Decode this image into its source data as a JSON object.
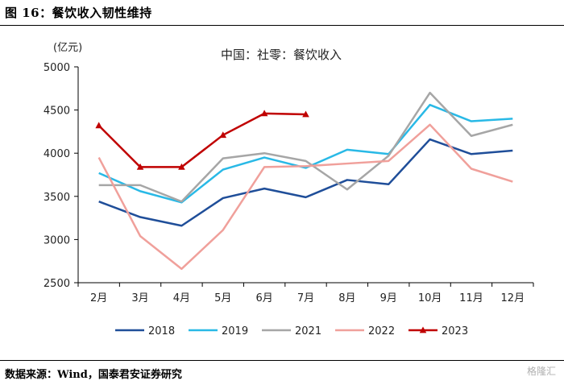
{
  "figure_title": "图 16：餐饮收入韧性维持",
  "source_text": "数据来源：Wind，国泰君安证券研究",
  "watermark": "格隆汇",
  "chart_data": {
    "type": "line",
    "title": "中国：社零：餐饮收入",
    "ylabel": "(亿元)",
    "xlabel": "",
    "ylim": [
      2500,
      5000
    ],
    "yticks": [
      2500,
      3000,
      3500,
      4000,
      4500,
      5000
    ],
    "categories": [
      "2月",
      "3月",
      "4月",
      "5月",
      "6月",
      "7月",
      "8月",
      "9月",
      "10月",
      "11月",
      "12月"
    ],
    "grid": false,
    "legend_position": "bottom",
    "series": [
      {
        "name": "2018",
        "color": "#1f4e99",
        "marker": "none",
        "values": [
          3440,
          3260,
          3160,
          3480,
          3590,
          3490,
          3690,
          3640,
          4160,
          3990,
          4030
        ]
      },
      {
        "name": "2019",
        "color": "#29b9e6",
        "marker": "none",
        "values": [
          3770,
          3560,
          3430,
          3810,
          3950,
          3830,
          4040,
          3990,
          4560,
          4370,
          4400
        ]
      },
      {
        "name": "2021",
        "color": "#a6a6a6",
        "marker": "none",
        "values": [
          3630,
          3630,
          3440,
          3940,
          4000,
          3910,
          3580,
          3970,
          4700,
          4200,
          4330
        ]
      },
      {
        "name": "2022",
        "color": "#f0a09b",
        "marker": "none",
        "values": [
          3950,
          3040,
          2660,
          3110,
          3840,
          3850,
          3880,
          3910,
          4330,
          3820,
          3670
        ]
      },
      {
        "name": "2023",
        "color": "#c00000",
        "marker": "triangle",
        "values": [
          4320,
          3840,
          3840,
          4210,
          4460,
          4450,
          null,
          null,
          null,
          null,
          null
        ]
      }
    ]
  }
}
